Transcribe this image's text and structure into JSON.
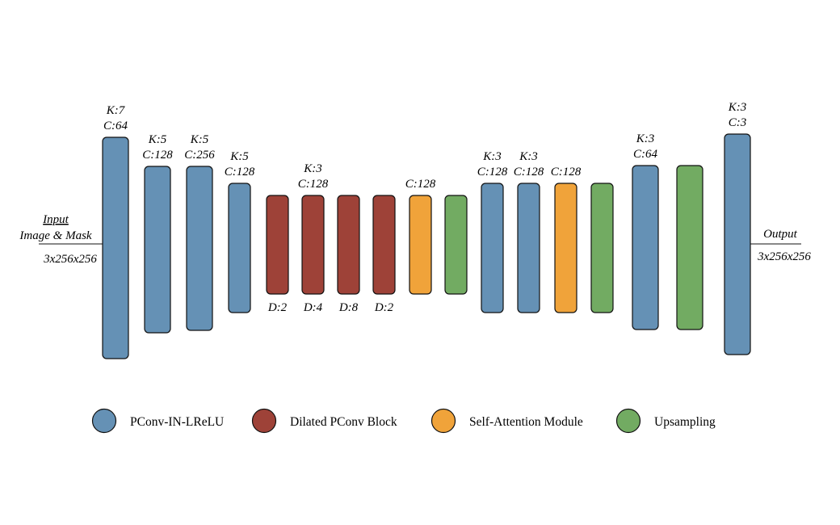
{
  "colors": {
    "pconv": "#6591B5",
    "dilated": "#9E4238",
    "attention": "#F0A33A",
    "upsampling": "#72AB62",
    "stroke": "#111111"
  },
  "input": {
    "title": "Input",
    "subtitle": "Image & Mask",
    "shape": "3x256x256"
  },
  "output": {
    "title": "Output",
    "shape": "3x256x256"
  },
  "blocks": [
    {
      "type": "pconv",
      "top_label": [
        "K:7",
        "C:64"
      ],
      "bottom_label": ""
    },
    {
      "type": "pconv",
      "top_label": [
        "K:5",
        "C:128"
      ],
      "bottom_label": ""
    },
    {
      "type": "pconv",
      "top_label": [
        "K:5",
        "C:256"
      ],
      "bottom_label": ""
    },
    {
      "type": "pconv",
      "top_label": [
        "K:5",
        "C:128"
      ],
      "bottom_label": ""
    },
    {
      "type": "dilated",
      "top_label": [],
      "bottom_label": "D:2"
    },
    {
      "type": "dilated",
      "top_label": [
        "K:3",
        "C:128"
      ],
      "bottom_label": "D:4"
    },
    {
      "type": "dilated",
      "top_label": [],
      "bottom_label": "D:8"
    },
    {
      "type": "dilated",
      "top_label": [],
      "bottom_label": "D:2"
    },
    {
      "type": "attention",
      "top_label": [
        "C:128"
      ],
      "bottom_label": ""
    },
    {
      "type": "upsampling",
      "top_label": [],
      "bottom_label": ""
    },
    {
      "type": "pconv",
      "top_label": [
        "K:3",
        "C:128"
      ],
      "bottom_label": ""
    },
    {
      "type": "pconv",
      "top_label": [
        "K:3",
        "C:128"
      ],
      "bottom_label": ""
    },
    {
      "type": "attention",
      "top_label": [
        "C:128"
      ],
      "bottom_label": ""
    },
    {
      "type": "upsampling",
      "top_label": [],
      "bottom_label": ""
    },
    {
      "type": "pconv",
      "top_label": [
        "K:3",
        "C:64"
      ],
      "bottom_label": ""
    },
    {
      "type": "upsampling",
      "top_label": [],
      "bottom_label": ""
    },
    {
      "type": "pconv",
      "top_label": [
        "K:3",
        "C:3"
      ],
      "bottom_label": ""
    }
  ],
  "legend": [
    {
      "type": "pconv",
      "label": "PConv-IN-LReLU"
    },
    {
      "type": "dilated",
      "label": "Dilated PConv Block"
    },
    {
      "type": "attention",
      "label": "Self-Attention Module"
    },
    {
      "type": "upsampling",
      "label": "Upsampling"
    }
  ]
}
